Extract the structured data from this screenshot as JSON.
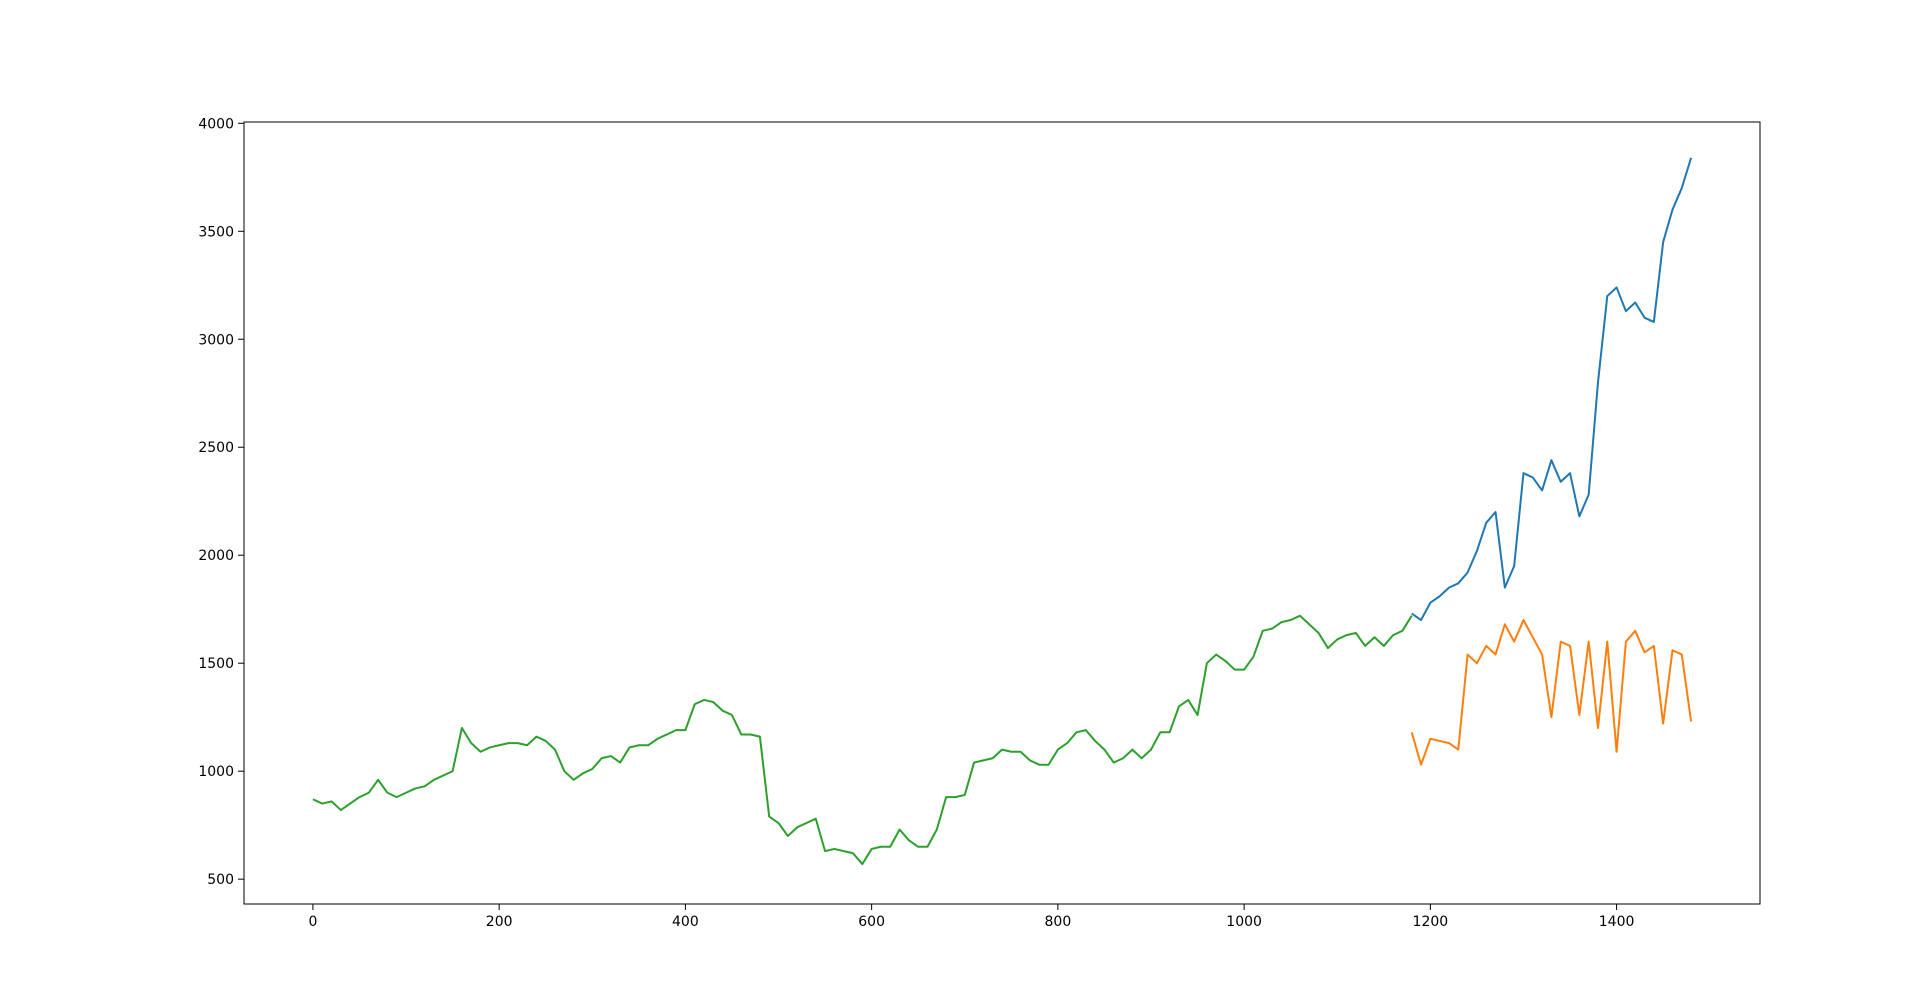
{
  "chart_data": {
    "type": "line",
    "x": [
      0,
      10,
      20,
      30,
      40,
      50,
      60,
      70,
      80,
      90,
      100,
      110,
      120,
      130,
      140,
      150,
      160,
      170,
      180,
      190,
      200,
      210,
      220,
      230,
      240,
      250,
      260,
      270,
      280,
      290,
      300,
      310,
      320,
      330,
      340,
      350,
      360,
      370,
      380,
      390,
      400,
      410,
      420,
      430,
      440,
      450,
      460,
      470,
      480,
      490,
      500,
      510,
      520,
      530,
      540,
      550,
      560,
      570,
      580,
      590,
      600,
      610,
      620,
      630,
      640,
      650,
      660,
      670,
      680,
      690,
      700,
      710,
      720,
      730,
      740,
      750,
      760,
      770,
      780,
      790,
      800,
      810,
      820,
      830,
      840,
      850,
      860,
      870,
      880,
      890,
      900,
      910,
      920,
      930,
      940,
      950,
      960,
      970,
      980,
      990,
      1000,
      1010,
      1020,
      1030,
      1040,
      1050,
      1060,
      1070,
      1080,
      1090,
      1100,
      1110,
      1120,
      1130,
      1140,
      1150,
      1160,
      1170,
      1180,
      1190,
      1200,
      1210,
      1220,
      1230,
      1240,
      1250,
      1260,
      1270,
      1280,
      1290,
      1300,
      1310,
      1320,
      1330,
      1340,
      1350,
      1360,
      1370,
      1380,
      1390,
      1400,
      1410,
      1420,
      1430,
      1440,
      1450,
      1460,
      1470,
      1480
    ],
    "series": [
      {
        "color": "#1f77b4",
        "values": [
          null,
          null,
          null,
          null,
          null,
          null,
          null,
          null,
          null,
          null,
          null,
          null,
          null,
          null,
          null,
          null,
          null,
          null,
          null,
          null,
          null,
          null,
          null,
          null,
          null,
          null,
          null,
          null,
          null,
          null,
          null,
          null,
          null,
          null,
          null,
          null,
          null,
          null,
          null,
          null,
          null,
          null,
          null,
          null,
          null,
          null,
          null,
          null,
          null,
          null,
          null,
          null,
          null,
          null,
          null,
          null,
          null,
          null,
          null,
          null,
          null,
          null,
          null,
          null,
          null,
          null,
          null,
          null,
          null,
          null,
          null,
          null,
          null,
          null,
          null,
          null,
          null,
          null,
          null,
          null,
          null,
          null,
          null,
          null,
          null,
          null,
          null,
          null,
          null,
          null,
          null,
          null,
          null,
          null,
          null,
          null,
          null,
          null,
          null,
          null,
          null,
          null,
          null,
          null,
          null,
          null,
          null,
          null,
          null,
          null,
          null,
          null,
          null,
          null,
          null,
          null,
          null,
          null,
          1730,
          1700,
          1780,
          1810,
          1850,
          1870,
          1920,
          2020,
          2150,
          2200,
          1850,
          1950,
          2380,
          2360,
          2300,
          2440,
          2340,
          2380,
          2180,
          2280,
          2800,
          3200,
          3240,
          3130,
          3170,
          3100,
          3080,
          3450,
          3600,
          3700,
          3840
        ]
      },
      {
        "color": "#ff7f0e",
        "values": [
          null,
          null,
          null,
          null,
          null,
          null,
          null,
          null,
          null,
          null,
          null,
          null,
          null,
          null,
          null,
          null,
          null,
          null,
          null,
          null,
          null,
          null,
          null,
          null,
          null,
          null,
          null,
          null,
          null,
          null,
          null,
          null,
          null,
          null,
          null,
          null,
          null,
          null,
          null,
          null,
          null,
          null,
          null,
          null,
          null,
          null,
          null,
          null,
          null,
          null,
          null,
          null,
          null,
          null,
          null,
          null,
          null,
          null,
          null,
          null,
          null,
          null,
          null,
          null,
          null,
          null,
          null,
          null,
          null,
          null,
          null,
          null,
          null,
          null,
          null,
          null,
          null,
          null,
          null,
          null,
          null,
          null,
          null,
          null,
          null,
          null,
          null,
          null,
          null,
          null,
          null,
          null,
          null,
          null,
          null,
          null,
          null,
          null,
          null,
          null,
          null,
          null,
          null,
          null,
          null,
          null,
          null,
          null,
          null,
          null,
          null,
          null,
          null,
          null,
          null,
          null,
          null,
          null,
          1180,
          1030,
          1150,
          1140,
          1130,
          1100,
          1540,
          1500,
          1580,
          1540,
          1680,
          1600,
          1700,
          1620,
          1540,
          1250,
          1600,
          1580,
          1260,
          1600,
          1200,
          1600,
          1090,
          1600,
          1650,
          1550,
          1580,
          1220,
          1560,
          1540,
          1230
        ]
      },
      {
        "color": "#2ca02c",
        "values": [
          870,
          850,
          860,
          820,
          850,
          880,
          900,
          960,
          900,
          880,
          900,
          920,
          930,
          960,
          980,
          1000,
          1200,
          1130,
          1090,
          1110,
          1120,
          1130,
          1130,
          1120,
          1160,
          1140,
          1100,
          1000,
          960,
          990,
          1010,
          1060,
          1070,
          1040,
          1110,
          1120,
          1120,
          1150,
          1170,
          1190,
          1190,
          1310,
          1330,
          1320,
          1280,
          1260,
          1170,
          1170,
          1160,
          790,
          760,
          700,
          740,
          760,
          780,
          630,
          640,
          630,
          620,
          570,
          640,
          650,
          650,
          730,
          680,
          650,
          650,
          730,
          880,
          880,
          890,
          1040,
          1050,
          1060,
          1100,
          1090,
          1090,
          1050,
          1030,
          1030,
          1100,
          1130,
          1180,
          1190,
          1140,
          1100,
          1040,
          1060,
          1100,
          1060,
          1100,
          1180,
          1180,
          1300,
          1330,
          1260,
          1500,
          1540,
          1510,
          1470,
          1470,
          1530,
          1650,
          1660,
          1690,
          1700,
          1720,
          1680,
          1640,
          1570,
          1610,
          1630,
          1640,
          1580,
          1620,
          1580,
          1630,
          1650,
          1720,
          null,
          null,
          null,
          null,
          null,
          null,
          null,
          null,
          null,
          null,
          null,
          null,
          null,
          null,
          null,
          null,
          null,
          null,
          null,
          null,
          null,
          null,
          null,
          null,
          null,
          null,
          null,
          null,
          null,
          null
        ]
      }
    ],
    "xlim": [
      -74,
      1554
    ],
    "ylim": [
      385,
      4006
    ],
    "xticks": [
      0,
      200,
      400,
      600,
      800,
      1000,
      1200,
      1400
    ],
    "yticks": [
      500,
      1000,
      1500,
      2000,
      2500,
      3000,
      3500,
      4000
    ]
  }
}
